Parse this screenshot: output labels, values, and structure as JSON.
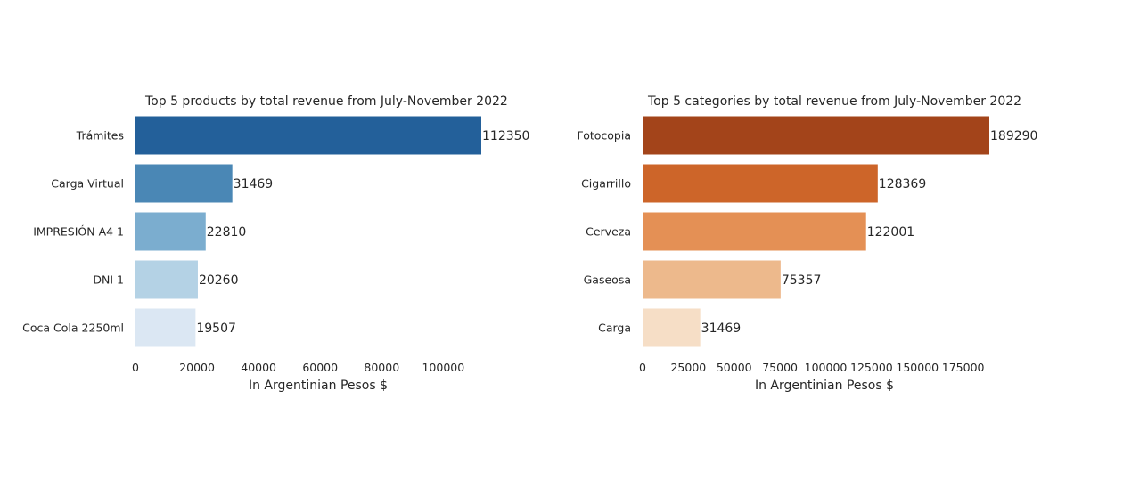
{
  "chart_data": [
    {
      "type": "bar",
      "orientation": "horizontal",
      "title": "Top 5 products by total revenue from July-November 2022",
      "xlabel": "In Argentinian Pesos $",
      "ylabel": "",
      "categories": [
        "Trámites",
        "Carga Virtual",
        "IMPRESIÓN A4 1",
        "DNI 1",
        "Coca Cola 2250ml"
      ],
      "values": [
        112350,
        31469,
        22810,
        20260,
        19507
      ],
      "data_labels": [
        "112350",
        "31469",
        "22810",
        "20260",
        "19507"
      ],
      "xlim": [
        0,
        112350
      ],
      "xticks": [
        0,
        20000,
        40000,
        60000,
        80000,
        100000
      ],
      "xtick_labels": [
        "0",
        "20000",
        "40000",
        "60000",
        "80000",
        "100000"
      ],
      "colors": [
        "#23609a",
        "#4a87b5",
        "#7badcf",
        "#b4d2e5",
        "#dbe7f3"
      ],
      "grid": false,
      "legend": false
    },
    {
      "type": "bar",
      "orientation": "horizontal",
      "title": "Top 5 categories by total revenue from July-November 2022",
      "xlabel": "In Argentinian Pesos $",
      "ylabel": "",
      "categories": [
        "Fotocopia",
        "Cigarrillo",
        "Cerveza",
        "Gaseosa",
        "Carga"
      ],
      "values": [
        189290,
        128369,
        122001,
        75357,
        31469
      ],
      "data_labels": [
        "189290",
        "128369",
        "122001",
        "75357",
        "31469"
      ],
      "xlim": [
        0,
        189290
      ],
      "xticks": [
        0,
        25000,
        50000,
        75000,
        100000,
        125000,
        150000,
        175000
      ],
      "xtick_labels": [
        "0",
        "25000",
        "50000",
        "75000",
        "100000",
        "125000",
        "150000",
        "175000"
      ],
      "colors": [
        "#a3441a",
        "#cd6529",
        "#e49055",
        "#edb98c",
        "#f6dec6"
      ],
      "grid": false,
      "legend": false
    }
  ]
}
